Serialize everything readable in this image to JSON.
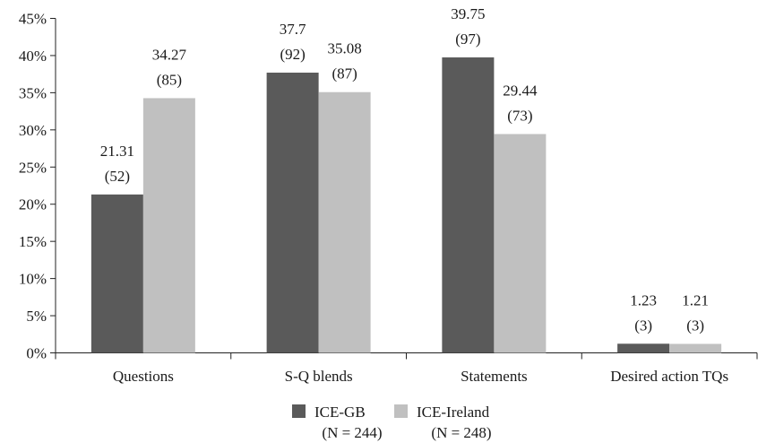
{
  "chart_data": {
    "type": "bar",
    "categories": [
      "Questions",
      "S-Q blends",
      "Statements",
      "Desired action TQs"
    ],
    "series": [
      {
        "name": "ICE-GB",
        "note": "(N = 244)",
        "color": "#5a5a5a",
        "values": [
          21.31,
          37.7,
          39.75,
          1.23
        ],
        "counts": [
          "(52)",
          "(92)",
          "(97)",
          "(3)"
        ]
      },
      {
        "name": "ICE-Ireland",
        "note": "(N = 248)",
        "color": "#c0c0c0",
        "values": [
          34.27,
          35.08,
          29.44,
          1.21
        ],
        "counts": [
          "(85)",
          "(87)",
          "(73)",
          "(3)"
        ]
      }
    ],
    "value_labels": [
      [
        "21.31",
        "37.7",
        "39.75",
        "1.23"
      ],
      [
        "34.27",
        "35.08",
        "29.44",
        "1.21"
      ]
    ],
    "yticks": [
      "0%",
      "5%",
      "10%",
      "15%",
      "20%",
      "25%",
      "30%",
      "35%",
      "40%",
      "45%"
    ],
    "ylim": [
      0,
      45
    ],
    "grid": false,
    "legend_position": "bottom-center"
  }
}
